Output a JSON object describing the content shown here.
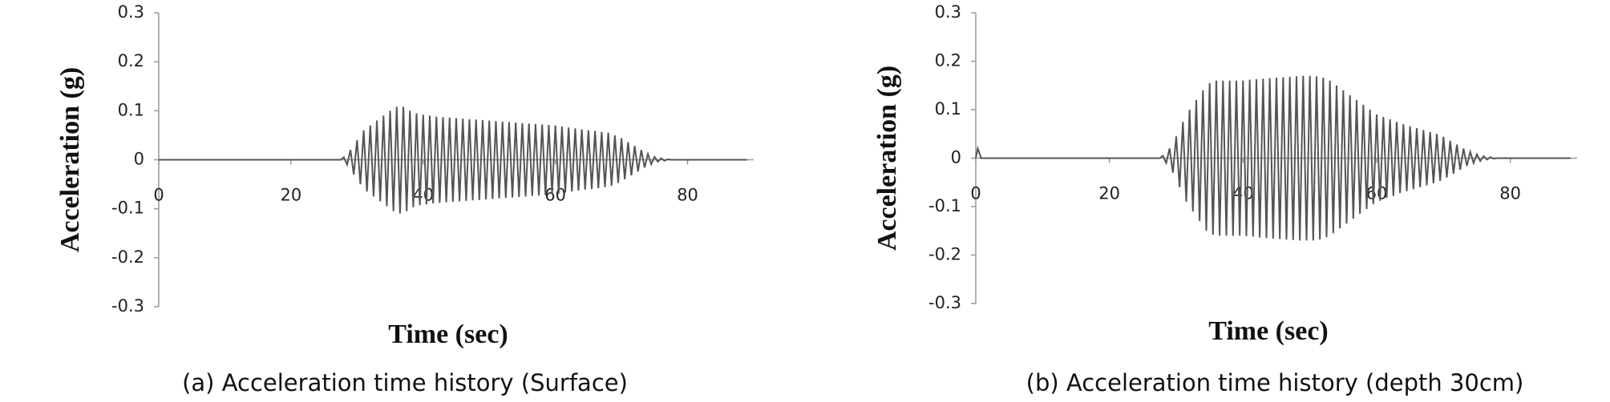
{
  "chart_data": [
    {
      "type": "line",
      "caption": "(a) Acceleration time history (Surface)",
      "xlabel": "Time (sec)",
      "ylabel": "Acceleration (g)",
      "color": "#555555",
      "xlim": [
        0,
        90
      ],
      "xticks": [
        0,
        20,
        40,
        60,
        80
      ],
      "ylim": [
        -0.3,
        0.3
      ],
      "yticks": [
        0.3,
        0.2,
        0.1,
        0,
        -0.1,
        -0.2,
        -0.3
      ],
      "x": [
        0,
        27.5,
        28,
        28.5,
        29,
        29.5,
        30,
        30.5,
        31,
        31.5,
        32,
        32.5,
        33,
        33.5,
        34,
        34.5,
        35,
        35.5,
        36,
        36.5,
        37,
        37.5,
        38,
        38.5,
        39,
        39.5,
        40,
        40.5,
        41,
        41.5,
        42,
        42.5,
        43,
        43.5,
        44,
        44.5,
        45,
        45.5,
        46,
        46.5,
        47,
        47.5,
        48,
        48.5,
        49,
        49.5,
        50,
        50.5,
        51,
        51.5,
        52,
        52.5,
        53,
        53.5,
        54,
        54.5,
        55,
        55.5,
        56,
        56.5,
        57,
        57.5,
        58,
        58.5,
        59,
        59.5,
        60,
        60.5,
        61,
        61.5,
        62,
        62.5,
        63,
        63.5,
        64,
        64.5,
        65,
        65.5,
        66,
        66.5,
        67,
        67.5,
        68,
        68.5,
        69,
        69.5,
        70,
        70.5,
        71,
        71.5,
        72,
        72.5,
        73,
        73.5,
        74,
        74.5,
        75,
        75.5,
        76,
        76.5,
        77,
        77.5,
        78,
        89
      ],
      "values": [
        0,
        0,
        0.005,
        -0.01,
        0.02,
        -0.03,
        0.04,
        -0.05,
        0.06,
        -0.065,
        0.07,
        -0.075,
        0.08,
        -0.085,
        0.09,
        -0.095,
        0.1,
        -0.105,
        0.108,
        -0.11,
        0.108,
        -0.105,
        0.1,
        -0.097,
        0.095,
        -0.093,
        0.092,
        -0.091,
        0.09,
        -0.089,
        0.088,
        -0.088,
        0.087,
        -0.087,
        0.086,
        -0.086,
        0.085,
        -0.085,
        0.084,
        -0.084,
        0.083,
        -0.083,
        0.082,
        -0.082,
        0.081,
        -0.081,
        0.08,
        -0.08,
        0.079,
        -0.079,
        0.078,
        -0.078,
        0.077,
        -0.077,
        0.076,
        -0.076,
        0.075,
        -0.075,
        0.074,
        -0.074,
        0.073,
        -0.073,
        0.072,
        -0.072,
        0.071,
        -0.07,
        0.07,
        -0.069,
        0.068,
        -0.067,
        0.066,
        -0.065,
        0.064,
        -0.063,
        0.062,
        -0.061,
        0.06,
        -0.06,
        0.059,
        -0.058,
        0.057,
        -0.056,
        0.055,
        -0.053,
        0.05,
        -0.047,
        0.044,
        -0.04,
        0.036,
        -0.032,
        0.028,
        -0.024,
        0.02,
        -0.016,
        0.012,
        -0.009,
        0.006,
        -0.004,
        0.003,
        -0.002,
        0.001,
        0,
        0,
        0
      ]
    },
    {
      "type": "line",
      "caption": "(b) Acceleration time history (depth 30cm)",
      "xlabel": "Time (sec)",
      "ylabel": "Acceleration (g)",
      "color": "#555555",
      "xlim": [
        0,
        90
      ],
      "xticks": [
        0,
        20,
        40,
        60,
        80
      ],
      "ylim": [
        -0.3,
        0.3
      ],
      "yticks": [
        0.3,
        0.2,
        0.1,
        0,
        -0.1,
        -0.2,
        -0.3
      ],
      "x": [
        0,
        0.3,
        0.8,
        27.5,
        28,
        28.5,
        29,
        29.5,
        30,
        30.5,
        31,
        31.5,
        32,
        32.5,
        33,
        33.5,
        34,
        34.5,
        35,
        35.5,
        36,
        36.5,
        37,
        37.5,
        38,
        38.5,
        39,
        39.5,
        40,
        40.5,
        41,
        41.5,
        42,
        42.5,
        43,
        43.5,
        44,
        44.5,
        45,
        45.5,
        46,
        46.5,
        47,
        47.5,
        48,
        48.5,
        49,
        49.5,
        50,
        50.5,
        51,
        51.5,
        52,
        52.5,
        53,
        53.5,
        54,
        54.5,
        55,
        55.5,
        56,
        56.5,
        57,
        57.5,
        58,
        58.5,
        59,
        59.5,
        60,
        60.5,
        61,
        61.5,
        62,
        62.5,
        63,
        63.5,
        64,
        64.5,
        65,
        65.5,
        66,
        66.5,
        67,
        67.5,
        68,
        68.5,
        69,
        69.5,
        70,
        70.5,
        71,
        71.5,
        72,
        72.5,
        73,
        73.5,
        74,
        74.5,
        75,
        75.5,
        76,
        76.5,
        77,
        77.5,
        78,
        89
      ],
      "values": [
        0,
        0.02,
        0,
        0,
        0.005,
        -0.01,
        0.02,
        -0.03,
        0.045,
        -0.06,
        0.075,
        -0.09,
        0.1,
        -0.11,
        0.12,
        -0.13,
        0.14,
        -0.15,
        0.155,
        -0.158,
        0.16,
        -0.16,
        0.16,
        -0.16,
        0.16,
        -0.16,
        0.16,
        -0.16,
        0.16,
        -0.161,
        0.162,
        -0.162,
        0.163,
        -0.164,
        0.164,
        -0.165,
        0.165,
        -0.166,
        0.166,
        -0.167,
        0.167,
        -0.168,
        0.168,
        -0.169,
        0.169,
        -0.17,
        0.17,
        -0.17,
        0.17,
        -0.17,
        0.169,
        -0.168,
        0.166,
        -0.163,
        0.16,
        -0.155,
        0.15,
        -0.145,
        0.14,
        -0.135,
        0.13,
        -0.125,
        0.12,
        -0.115,
        0.11,
        -0.105,
        0.1,
        -0.095,
        0.09,
        -0.088,
        0.085,
        -0.082,
        0.08,
        -0.078,
        0.075,
        -0.072,
        0.07,
        -0.068,
        0.066,
        -0.064,
        0.062,
        -0.06,
        0.058,
        -0.056,
        0.054,
        -0.052,
        0.05,
        -0.047,
        0.044,
        -0.04,
        0.036,
        -0.032,
        0.028,
        -0.024,
        0.02,
        -0.016,
        0.013,
        -0.01,
        0.008,
        -0.006,
        0.004,
        -0.003,
        0.002,
        -0.001,
        0,
        0
      ]
    }
  ]
}
